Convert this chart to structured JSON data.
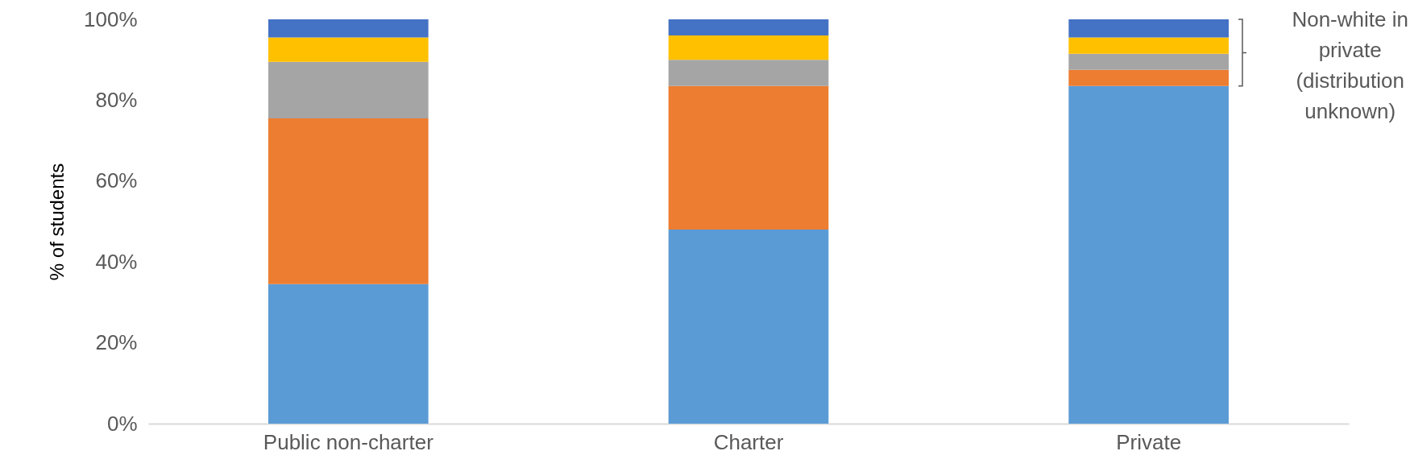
{
  "chart_data": {
    "type": "bar",
    "stacked": true,
    "ylabel": "% of students",
    "categories": [
      "Public non-charter",
      "Charter",
      "Private"
    ],
    "series": [
      {
        "color": "#5b9bd5",
        "values": [
          34.5,
          48,
          83.5
        ]
      },
      {
        "color": "#ed7d31",
        "values": [
          41,
          35.5,
          4
        ]
      },
      {
        "color": "#a5a5a5",
        "values": [
          14,
          6.5,
          4
        ]
      },
      {
        "color": "#ffc000",
        "values": [
          6,
          6,
          4
        ]
      },
      {
        "color": "#4472c4",
        "values": [
          4.5,
          4,
          4.5
        ]
      }
    ],
    "ylim": [
      0,
      100
    ],
    "yticks": [
      {
        "value": 0,
        "label": "0%"
      },
      {
        "value": 20,
        "label": "20%"
      },
      {
        "value": 40,
        "label": "40%"
      },
      {
        "value": 60,
        "label": "60%"
      },
      {
        "value": 80,
        "label": "80%"
      },
      {
        "value": 100,
        "label": "100%"
      }
    ],
    "grid": false,
    "legend": false,
    "annotations": [
      "Non-white in private (distribution unknown)"
    ]
  }
}
